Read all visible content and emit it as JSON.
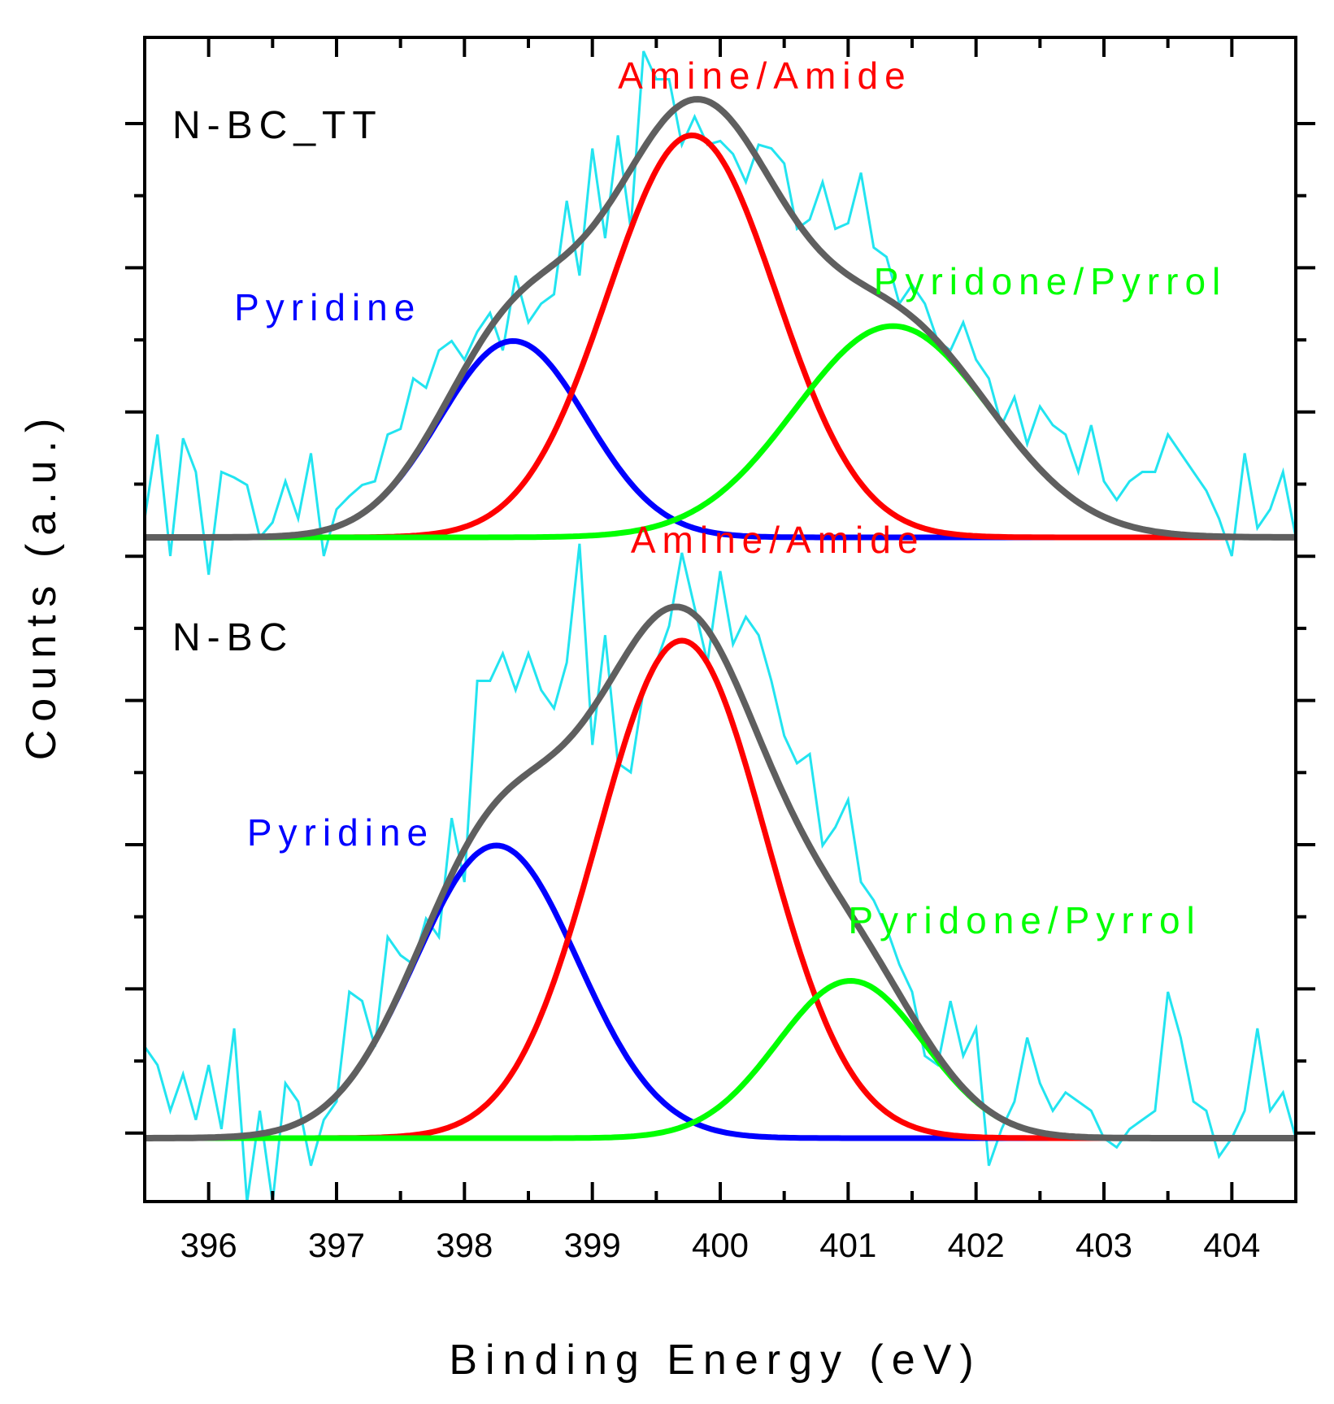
{
  "chart_data": {
    "type": "line",
    "title": "",
    "xlabel": "Binding Energy (eV)",
    "ylabel": "Counts (a.u.)",
    "xlim": [
      395.5,
      404.5
    ],
    "x_ticks": [
      "396",
      "397",
      "398",
      "399",
      "400",
      "401",
      "402",
      "403",
      "404"
    ],
    "colors": {
      "raw": "#22e4f0",
      "envelope": "#5f5f5f",
      "pyridine": "#0000ff",
      "amine": "#ff0000",
      "pyridone": "#00ff00",
      "axis": "#000000"
    },
    "panels": [
      {
        "sample": "N-BC_TT",
        "position": "top",
        "baseline": 0,
        "components": [
          {
            "name": "Pyridine",
            "center": 398.38,
            "height": 1.05,
            "fwhm": 1.35,
            "label": "Pyridine",
            "label_x": 396.2,
            "label_y": 1.16
          },
          {
            "name": "Amine/Amide",
            "center": 399.78,
            "height": 2.15,
            "fwhm": 1.55,
            "label": "Amine/Amide",
            "label_x": 399.2,
            "label_y": 2.4
          },
          {
            "name": "Pyridone/Pyrrol",
            "center": 401.35,
            "height": 1.13,
            "fwhm": 1.8,
            "label": "Pyridone/Pyrrol",
            "label_x": 401.2,
            "label_y": 1.3
          }
        ],
        "raw": {
          "x": [
            395.5,
            395.6,
            395.7,
            395.8,
            395.9,
            396.0,
            396.1,
            396.2,
            396.3,
            396.4,
            396.5,
            396.6,
            396.7,
            396.8,
            396.9,
            397.0,
            397.1,
            397.2,
            397.3,
            397.4,
            397.5,
            397.6,
            397.7,
            397.8,
            397.9,
            398.0,
            398.1,
            398.2,
            398.3,
            398.4,
            398.5,
            398.6,
            398.7,
            398.8,
            398.9,
            399.0,
            399.1,
            399.2,
            399.3,
            399.4,
            399.5,
            399.6,
            399.7,
            399.8,
            399.9,
            400.0,
            400.1,
            400.2,
            400.3,
            400.4,
            400.5,
            400.6,
            400.7,
            400.8,
            400.9,
            401.0,
            401.1,
            401.2,
            401.3,
            401.4,
            401.5,
            401.6,
            401.7,
            401.8,
            401.9,
            402.0,
            402.1,
            402.2,
            402.3,
            402.4,
            402.5,
            402.6,
            402.7,
            402.8,
            402.9,
            403.0,
            403.1,
            403.2,
            403.3,
            403.4,
            403.5,
            403.6,
            403.7,
            403.8,
            403.9,
            404.0,
            404.1,
            404.2,
            404.3,
            404.4,
            404.5
          ],
          "y": [
            0.1,
            0.55,
            -0.1,
            0.53,
            0.35,
            -0.2,
            0.35,
            0.32,
            0.28,
            0.0,
            0.08,
            0.3,
            0.1,
            0.45,
            -0.1,
            0.15,
            0.22,
            0.28,
            0.3,
            0.55,
            0.58,
            0.85,
            0.8,
            1.0,
            1.05,
            0.95,
            1.1,
            1.2,
            1.0,
            1.4,
            1.15,
            1.25,
            1.3,
            1.8,
            1.4,
            2.08,
            1.6,
            2.15,
            1.65,
            2.6,
            2.45,
            2.45,
            2.1,
            2.25,
            2.1,
            2.12,
            2.05,
            1.9,
            2.1,
            2.08,
            2.0,
            1.65,
            1.7,
            1.9,
            1.65,
            1.68,
            1.95,
            1.55,
            1.5,
            1.25,
            1.35,
            1.25,
            1.05,
            1.0,
            1.15,
            0.95,
            0.85,
            0.6,
            0.75,
            0.5,
            0.7,
            0.6,
            0.55,
            0.35,
            0.6,
            0.3,
            0.2,
            0.3,
            0.35,
            0.35,
            0.55,
            0.45,
            0.35,
            0.25,
            0.1,
            -0.1,
            0.45,
            0.05,
            0.15,
            0.35,
            0.0
          ],
          "noise_note": "visual trace of the raw spectrum"
        }
      },
      {
        "sample": "N-BC",
        "position": "bottom",
        "baseline": 0,
        "components": [
          {
            "name": "Pyridine",
            "center": 398.25,
            "height": 1.6,
            "fwhm": 1.5,
            "label": "Pyridine",
            "label_x": 396.3,
            "label_y": 1.6
          },
          {
            "name": "Amine/Amide",
            "center": 399.7,
            "height": 2.72,
            "fwhm": 1.55,
            "label": "Amine/Amide",
            "label_x": 399.3,
            "label_y": 3.2
          },
          {
            "name": "Pyridone/Pyrrol",
            "center": 401.02,
            "height": 0.86,
            "fwhm": 1.35,
            "label": "Pyridone/Pyrrol",
            "label_x": 401.0,
            "label_y": 1.12
          }
        ],
        "raw": {
          "x": [
            395.5,
            395.6,
            395.7,
            395.8,
            395.9,
            396.0,
            396.1,
            396.2,
            396.3,
            396.4,
            396.5,
            396.6,
            396.7,
            396.8,
            396.9,
            397.0,
            397.1,
            397.2,
            397.3,
            397.4,
            397.5,
            397.6,
            397.7,
            397.8,
            397.9,
            398.0,
            398.1,
            398.2,
            398.3,
            398.4,
            398.5,
            398.6,
            398.7,
            398.8,
            398.9,
            399.0,
            399.1,
            399.2,
            399.3,
            399.4,
            399.5,
            399.6,
            399.7,
            399.8,
            399.9,
            400.0,
            400.1,
            400.2,
            400.3,
            400.4,
            400.5,
            400.6,
            400.7,
            400.8,
            400.9,
            401.0,
            401.1,
            401.2,
            401.3,
            401.4,
            401.5,
            401.6,
            401.7,
            401.8,
            401.9,
            402.0,
            402.1,
            402.2,
            402.3,
            402.4,
            402.5,
            402.6,
            402.7,
            402.8,
            402.9,
            403.0,
            403.1,
            403.2,
            403.3,
            403.4,
            403.5,
            403.6,
            403.7,
            403.8,
            403.9,
            404.0,
            404.1,
            404.2,
            404.3,
            404.4,
            404.5
          ],
          "y": [
            0.5,
            0.4,
            0.15,
            0.35,
            0.1,
            0.4,
            0.05,
            0.6,
            -0.35,
            0.15,
            -0.35,
            0.3,
            0.2,
            -0.15,
            0.1,
            0.2,
            0.8,
            0.75,
            0.5,
            1.1,
            1.0,
            0.95,
            1.2,
            1.1,
            1.75,
            1.4,
            2.5,
            2.5,
            2.65,
            2.45,
            2.65,
            2.45,
            2.35,
            2.6,
            3.25,
            2.15,
            2.75,
            2.05,
            2.0,
            2.45,
            2.6,
            2.8,
            3.2,
            2.9,
            2.6,
            3.1,
            2.7,
            2.85,
            2.75,
            2.5,
            2.2,
            2.05,
            2.1,
            1.6,
            1.7,
            1.85,
            1.4,
            1.3,
            1.15,
            0.95,
            0.8,
            0.45,
            0.4,
            0.75,
            0.45,
            0.6,
            -0.15,
            0.05,
            0.2,
            0.55,
            0.3,
            0.15,
            0.25,
            0.2,
            0.15,
            0.0,
            -0.05,
            0.05,
            0.1,
            0.15,
            0.8,
            0.55,
            0.2,
            0.15,
            -0.1,
            0.0,
            0.15,
            0.6,
            0.15,
            0.25,
            0.0
          ],
          "noise_note": "visual trace of the raw spectrum"
        }
      }
    ]
  }
}
